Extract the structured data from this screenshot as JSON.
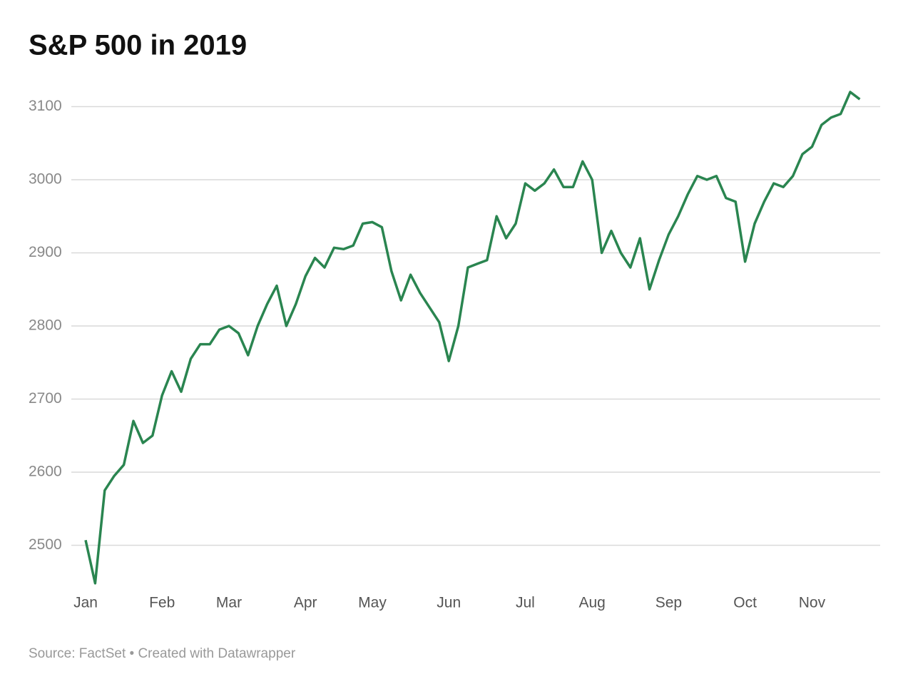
{
  "chart_data": {
    "type": "line",
    "title": "S&P 500 in 2019",
    "source": "Source: FactSet • Created with Datawrapper",
    "categories": [
      "Jan",
      null,
      null,
      null,
      null,
      null,
      null,
      null,
      "Feb",
      null,
      null,
      null,
      null,
      null,
      null,
      "Mar",
      null,
      null,
      null,
      null,
      null,
      null,
      null,
      "Apr",
      null,
      null,
      null,
      null,
      null,
      null,
      "May",
      null,
      null,
      null,
      null,
      null,
      null,
      null,
      "Jun",
      null,
      null,
      null,
      null,
      null,
      null,
      null,
      "Jul",
      null,
      null,
      null,
      null,
      null,
      null,
      "Aug",
      null,
      null,
      null,
      null,
      null,
      null,
      null,
      "Sep",
      null,
      null,
      null,
      null,
      null,
      null,
      null,
      "Oct",
      null,
      null,
      null,
      null,
      null,
      null,
      "Nov",
      null,
      null,
      null,
      null,
      null
    ],
    "values": [
      2507,
      2448,
      2575,
      2595,
      2610,
      2670,
      2640,
      2650,
      2705,
      2738,
      2710,
      2755,
      2775,
      2775,
      2795,
      2800,
      2790,
      2760,
      2800,
      2830,
      2855,
      2800,
      2830,
      2868,
      2893,
      2880,
      2907,
      2905,
      2910,
      2940,
      2942,
      2935,
      2875,
      2835,
      2870,
      2845,
      2825,
      2805,
      2752,
      2800,
      2880,
      2885,
      2890,
      2950,
      2920,
      2940,
      2995,
      2985,
      2995,
      3014,
      2990,
      2990,
      3025,
      3000,
      2900,
      2930,
      2900,
      2880,
      2920,
      2850,
      2890,
      2925,
      2950,
      2980,
      3005,
      3000,
      3005,
      2975,
      2970,
      2888,
      2940,
      2970,
      2995,
      2990,
      3005,
      3035,
      3045,
      3075,
      3085,
      3090,
      3120,
      3110
    ],
    "color": "#2a8550",
    "ylim": [
      2440,
      3130
    ],
    "yticks": [
      2500,
      2600,
      2700,
      2800,
      2900,
      3000,
      3100
    ],
    "grid": true
  }
}
